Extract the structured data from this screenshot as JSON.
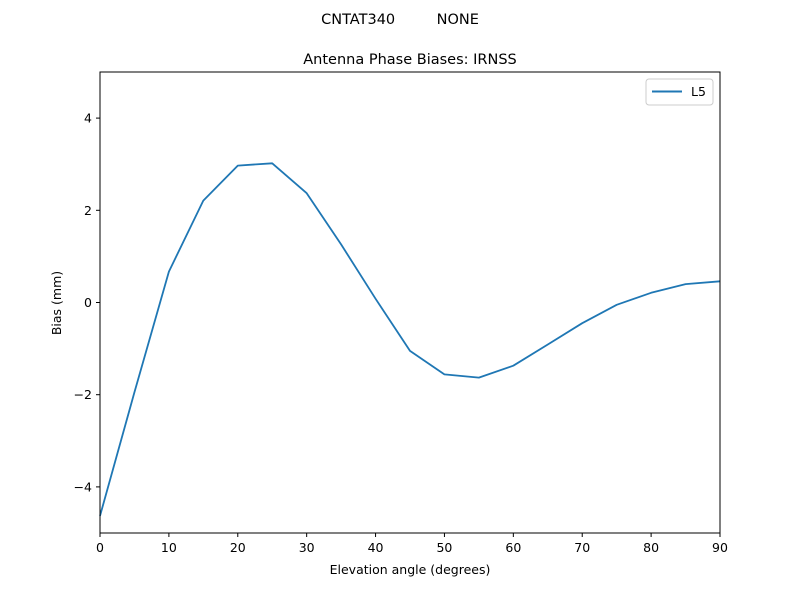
{
  "figure": {
    "suptitle": "CNTAT340         NONE"
  },
  "chart_data": {
    "type": "line",
    "suptitle": "CNTAT340         NONE",
    "title": "Antenna Phase Biases: IRNSS",
    "xlabel": "Elevation angle (degrees)",
    "ylabel": "Bias (mm)",
    "xlim": [
      0,
      90
    ],
    "ylim": [
      -5,
      5
    ],
    "xticks": [
      0,
      10,
      20,
      30,
      40,
      50,
      60,
      70,
      80,
      90
    ],
    "yticks": [
      -4,
      -2,
      0,
      2,
      4
    ],
    "ytick_labels": [
      "−4",
      "−2",
      "0",
      "2",
      "4"
    ],
    "grid": false,
    "legend_position": "upper right",
    "x": [
      0,
      5,
      10,
      15,
      20,
      25,
      30,
      35,
      40,
      45,
      50,
      55,
      60,
      65,
      70,
      75,
      80,
      85,
      90
    ],
    "series": [
      {
        "name": "L5",
        "color": "#1f77b4",
        "values": [
          -4.63,
          -1.95,
          0.67,
          2.21,
          2.97,
          3.02,
          2.37,
          1.26,
          0.08,
          -1.05,
          -1.56,
          -1.63,
          -1.37,
          -0.91,
          -0.45,
          -0.05,
          0.21,
          0.4,
          0.46
        ]
      }
    ]
  }
}
